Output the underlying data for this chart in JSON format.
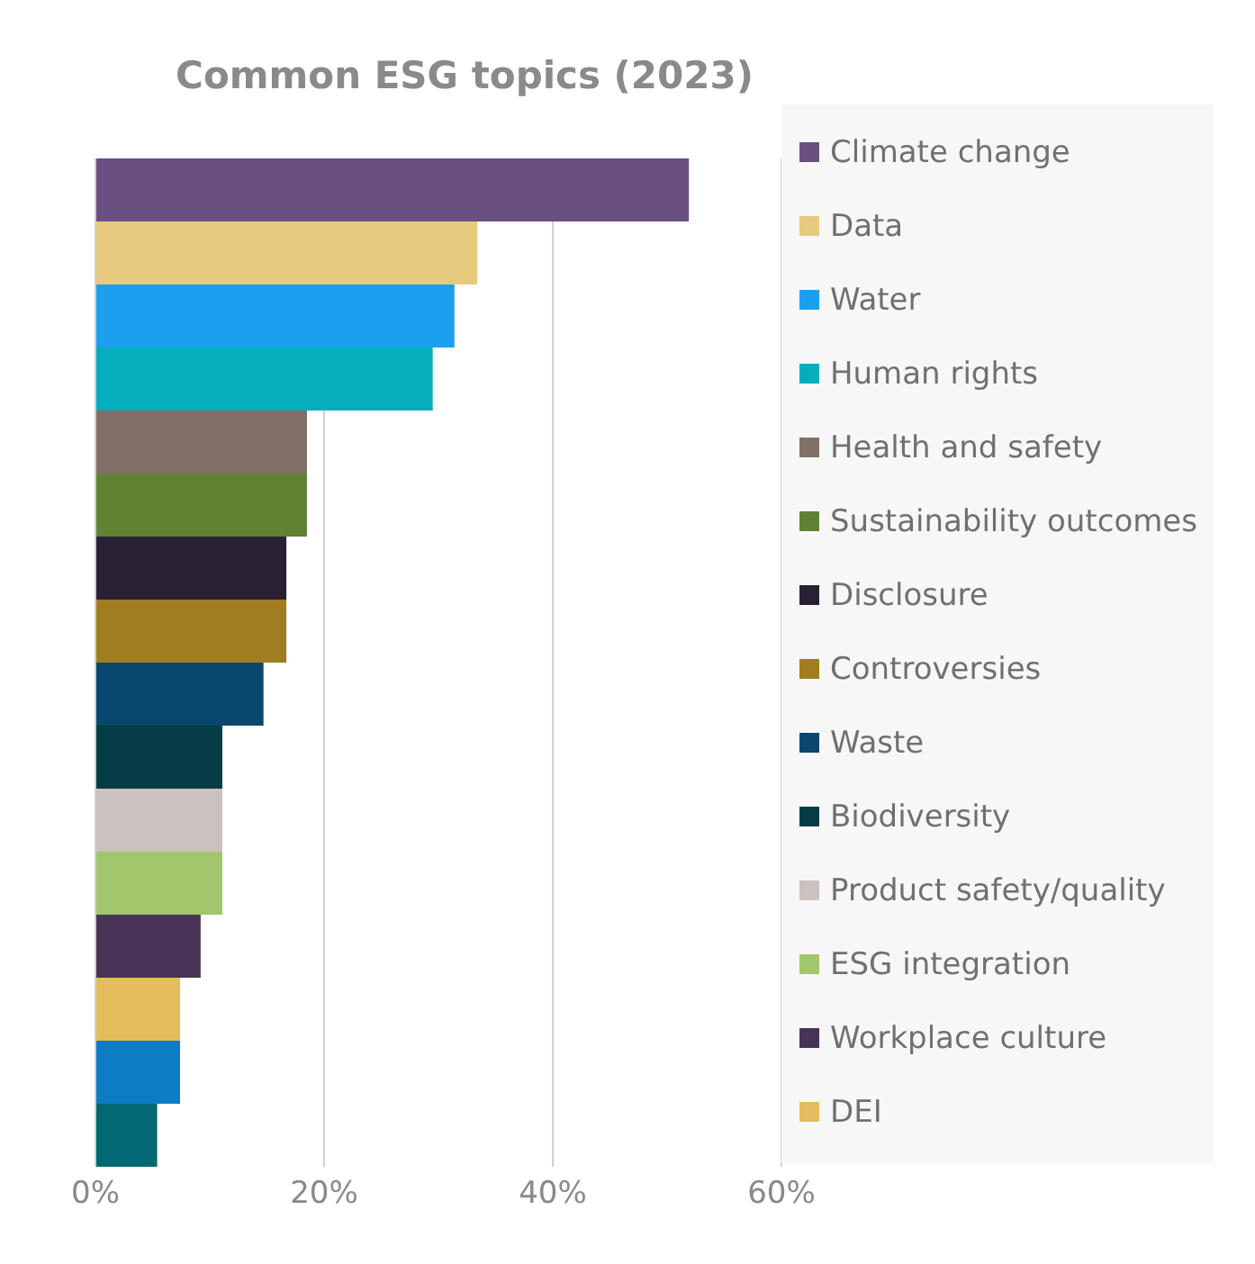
{
  "chart_data": {
    "type": "bar",
    "title": "Common ESG topics (2023)",
    "orientation": "horizontal",
    "stacked": true,
    "categories": [
      null,
      null,
      null,
      null,
      null,
      null,
      null,
      null,
      null,
      null,
      null,
      null,
      null,
      null,
      null,
      null
    ],
    "xlim": [
      0,
      60
    ],
    "xticks": [
      {
        "value": 0,
        "label": "0%"
      },
      {
        "value": 20,
        "label": "20%"
      },
      {
        "value": 40,
        "label": "40%"
      },
      {
        "value": 60,
        "label": "60%"
      }
    ],
    "grid": "x",
    "legend": "right",
    "tick_labels": "x",
    "series": [
      {
        "name": "Climate change",
        "color": "#6a4f82",
        "values": [
          51.9,
          null,
          null,
          null,
          null,
          null,
          null,
          null,
          null,
          null,
          null,
          null,
          null,
          null,
          null,
          null
        ]
      },
      {
        "name": "Data",
        "color": "#e8ca7e",
        "values": [
          null,
          33.4,
          null,
          null,
          null,
          null,
          null,
          null,
          null,
          null,
          null,
          null,
          null,
          null,
          null,
          null
        ]
      },
      {
        "name": "Water",
        "color": "#1ba0f0",
        "values": [
          null,
          null,
          31.4,
          null,
          null,
          null,
          null,
          null,
          null,
          null,
          null,
          null,
          null,
          null,
          null,
          null
        ]
      },
      {
        "name": "Human rights",
        "color": "#06adbd",
        "values": [
          null,
          null,
          null,
          29.5,
          null,
          null,
          null,
          null,
          null,
          null,
          null,
          null,
          null,
          null,
          null,
          null
        ]
      },
      {
        "name": "Health and safety",
        "color": "#817068",
        "values": [
          null,
          null,
          null,
          null,
          18.5,
          null,
          null,
          null,
          null,
          null,
          null,
          null,
          null,
          null,
          null,
          null
        ]
      },
      {
        "name": "Sustainability outcomes",
        "color": "#618233",
        "values": [
          null,
          null,
          null,
          null,
          null,
          18.5,
          null,
          null,
          null,
          null,
          null,
          null,
          null,
          null,
          null,
          null
        ]
      },
      {
        "name": "Disclosure",
        "color": "#292033",
        "values": [
          null,
          null,
          null,
          null,
          null,
          null,
          16.7,
          null,
          null,
          null,
          null,
          null,
          null,
          null,
          null,
          null
        ]
      },
      {
        "name": "Controversies",
        "color": "#a07d20",
        "values": [
          null,
          null,
          null,
          null,
          null,
          null,
          null,
          16.7,
          null,
          null,
          null,
          null,
          null,
          null,
          null,
          null
        ]
      },
      {
        "name": "Waste",
        "color": "#09476e",
        "values": [
          null,
          null,
          null,
          null,
          null,
          null,
          null,
          null,
          14.7,
          null,
          null,
          null,
          null,
          null,
          null,
          null
        ]
      },
      {
        "name": "Biodiversity",
        "color": "#053c44",
        "values": [
          null,
          null,
          null,
          null,
          null,
          null,
          null,
          null,
          null,
          11.1,
          null,
          null,
          null,
          null,
          null,
          null
        ]
      },
      {
        "name": "Product safety/quality",
        "color": "#cbc1be",
        "values": [
          null,
          null,
          null,
          null,
          null,
          null,
          null,
          null,
          null,
          null,
          11.1,
          null,
          null,
          null,
          null,
          null
        ]
      },
      {
        "name": "ESG integration",
        "color": "#a2c66b",
        "values": [
          null,
          null,
          null,
          null,
          null,
          null,
          null,
          null,
          null,
          null,
          null,
          11.1,
          null,
          null,
          null,
          null
        ]
      },
      {
        "name": "Workplace culture",
        "color": "#473354",
        "values": [
          null,
          null,
          null,
          null,
          null,
          null,
          null,
          null,
          null,
          null,
          null,
          null,
          9.2,
          null,
          null,
          null
        ]
      },
      {
        "name": "DEI",
        "color": "#e3bd5b",
        "values": [
          null,
          null,
          null,
          null,
          null,
          null,
          null,
          null,
          null,
          null,
          null,
          null,
          null,
          7.4,
          null,
          null
        ]
      },
      {
        "color": "#0c7cc4",
        "values": [
          null,
          null,
          null,
          null,
          null,
          null,
          null,
          null,
          null,
          null,
          null,
          null,
          null,
          null,
          7.4,
          null
        ]
      },
      {
        "color": "#026872",
        "values": [
          null,
          null,
          null,
          null,
          null,
          null,
          null,
          null,
          null,
          null,
          null,
          null,
          null,
          null,
          null,
          5.4
        ]
      }
    ]
  }
}
